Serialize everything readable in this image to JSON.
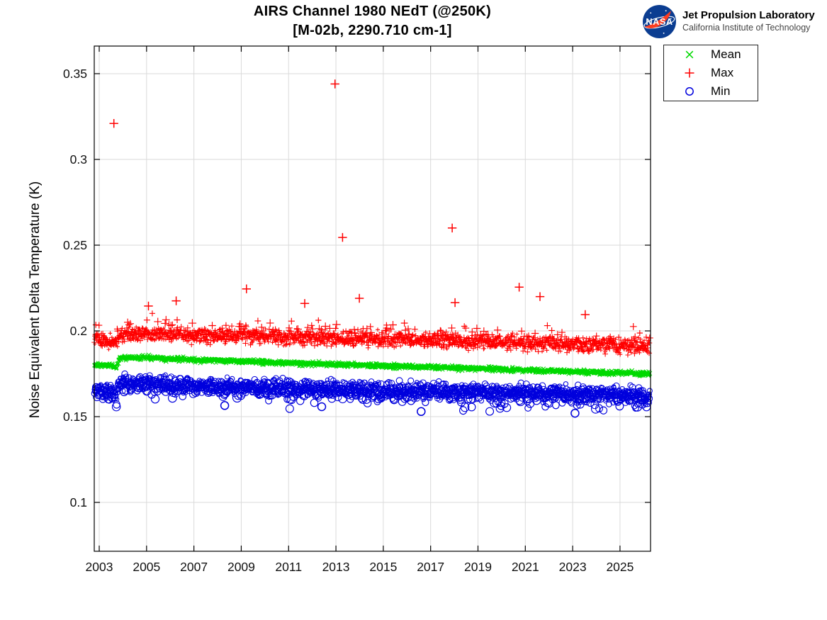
{
  "header": {
    "title_line1": "AIRS Channel 1980 NEdT (@250K)",
    "title_line2": "[M-02b, 2290.710 cm-1]"
  },
  "logo": {
    "org": "NASA",
    "line1": "Jet Propulsion Laboratory",
    "line2": "California Institute of Technology",
    "meatball_blue": "#0b3d91",
    "swoosh_red": "#fc3d21"
  },
  "legend": {
    "items": [
      {
        "label": "Mean",
        "marker": "x",
        "color": "#00d900"
      },
      {
        "label": "Max",
        "marker": "+",
        "color": "#ff0000"
      },
      {
        "label": "Min",
        "marker": "o",
        "color": "#0000dd"
      }
    ]
  },
  "chart_data": {
    "type": "scatter",
    "title": "AIRS Channel 1980 NEdT (@250K)",
    "subtitle": "[M-02b, 2290.710 cm-1]",
    "xlabel": "",
    "ylabel": "Noise Equivalent Delta Temperature (K)",
    "xlim": [
      2002.79,
      2026.29
    ],
    "ylim": [
      0.0715,
      0.3661
    ],
    "xticks": [
      2003,
      2005,
      2007,
      2009,
      2011,
      2013,
      2015,
      2017,
      2019,
      2021,
      2023,
      2025
    ],
    "yticks": [
      0.1,
      0.15,
      0.2,
      0.25,
      0.3,
      0.35
    ],
    "ytick_labels": [
      "0.1",
      "0.15",
      "0.2",
      "0.25",
      "0.3",
      "0.35"
    ],
    "grid": true,
    "grid_color": "#dadada",
    "axis_color": "#000000",
    "legend_position": "outside-top-right",
    "points_per_series": 1900,
    "series": [
      {
        "name": "Mean",
        "marker": "x",
        "color": "#00d900",
        "spread": 0.00065,
        "marker_size": 2.3,
        "trend": [
          [
            2002.79,
            0.1803
          ],
          [
            2003.3,
            0.18
          ],
          [
            2003.75,
            0.179
          ],
          [
            2003.85,
            0.1843
          ],
          [
            2004.8,
            0.1845
          ],
          [
            2007.0,
            0.1833
          ],
          [
            2010.0,
            0.1818
          ],
          [
            2013.0,
            0.1805
          ],
          [
            2016.0,
            0.1793
          ],
          [
            2019.0,
            0.178
          ],
          [
            2022.0,
            0.1768
          ],
          [
            2024.0,
            0.1758
          ],
          [
            2026.29,
            0.175
          ]
        ],
        "outliers": []
      },
      {
        "name": "Max",
        "marker": "+",
        "color": "#ff0000",
        "spread": 0.0021,
        "marker_size": 3.2,
        "tail": {
          "direction": 1,
          "magnitude": 0.006,
          "fraction": 0.07
        },
        "trend": [
          [
            2002.79,
            0.195
          ],
          [
            2003.55,
            0.1935
          ],
          [
            2003.75,
            0.1935
          ],
          [
            2003.85,
            0.198
          ],
          [
            2005.0,
            0.1985
          ],
          [
            2007.0,
            0.1975
          ],
          [
            2010.0,
            0.1965
          ],
          [
            2013.0,
            0.1958
          ],
          [
            2016.0,
            0.195
          ],
          [
            2019.0,
            0.1938
          ],
          [
            2022.0,
            0.1928
          ],
          [
            2026.29,
            0.191
          ]
        ],
        "outliers": [
          [
            2003.62,
            0.321
          ],
          [
            2005.08,
            0.2145
          ],
          [
            2006.25,
            0.2175
          ],
          [
            2009.22,
            0.2245
          ],
          [
            2011.68,
            0.216
          ],
          [
            2012.96,
            0.344
          ],
          [
            2013.28,
            0.2545
          ],
          [
            2013.99,
            0.219
          ],
          [
            2017.91,
            0.26
          ],
          [
            2018.03,
            0.2165
          ],
          [
            2020.74,
            0.2255
          ],
          [
            2021.62,
            0.22
          ],
          [
            2023.53,
            0.2095
          ]
        ]
      },
      {
        "name": "Min",
        "marker": "o",
        "color": "#0000dd",
        "spread": 0.0023,
        "marker_size": 3.4,
        "tail": {
          "direction": -1,
          "magnitude": 0.005,
          "fraction": 0.09
        },
        "trend": [
          [
            2002.79,
            0.1655
          ],
          [
            2003.3,
            0.165
          ],
          [
            2003.75,
            0.1638
          ],
          [
            2003.85,
            0.1692
          ],
          [
            2004.8,
            0.1695
          ],
          [
            2007.0,
            0.168
          ],
          [
            2010.0,
            0.1668
          ],
          [
            2013.0,
            0.166
          ],
          [
            2016.0,
            0.1652
          ],
          [
            2019.0,
            0.1643
          ],
          [
            2022.0,
            0.1635
          ],
          [
            2026.29,
            0.1622
          ]
        ],
        "outliers": [
          [
            2008.3,
            0.1565
          ],
          [
            2012.4,
            0.1558
          ],
          [
            2016.6,
            0.153
          ],
          [
            2023.1,
            0.152
          ]
        ]
      }
    ]
  }
}
